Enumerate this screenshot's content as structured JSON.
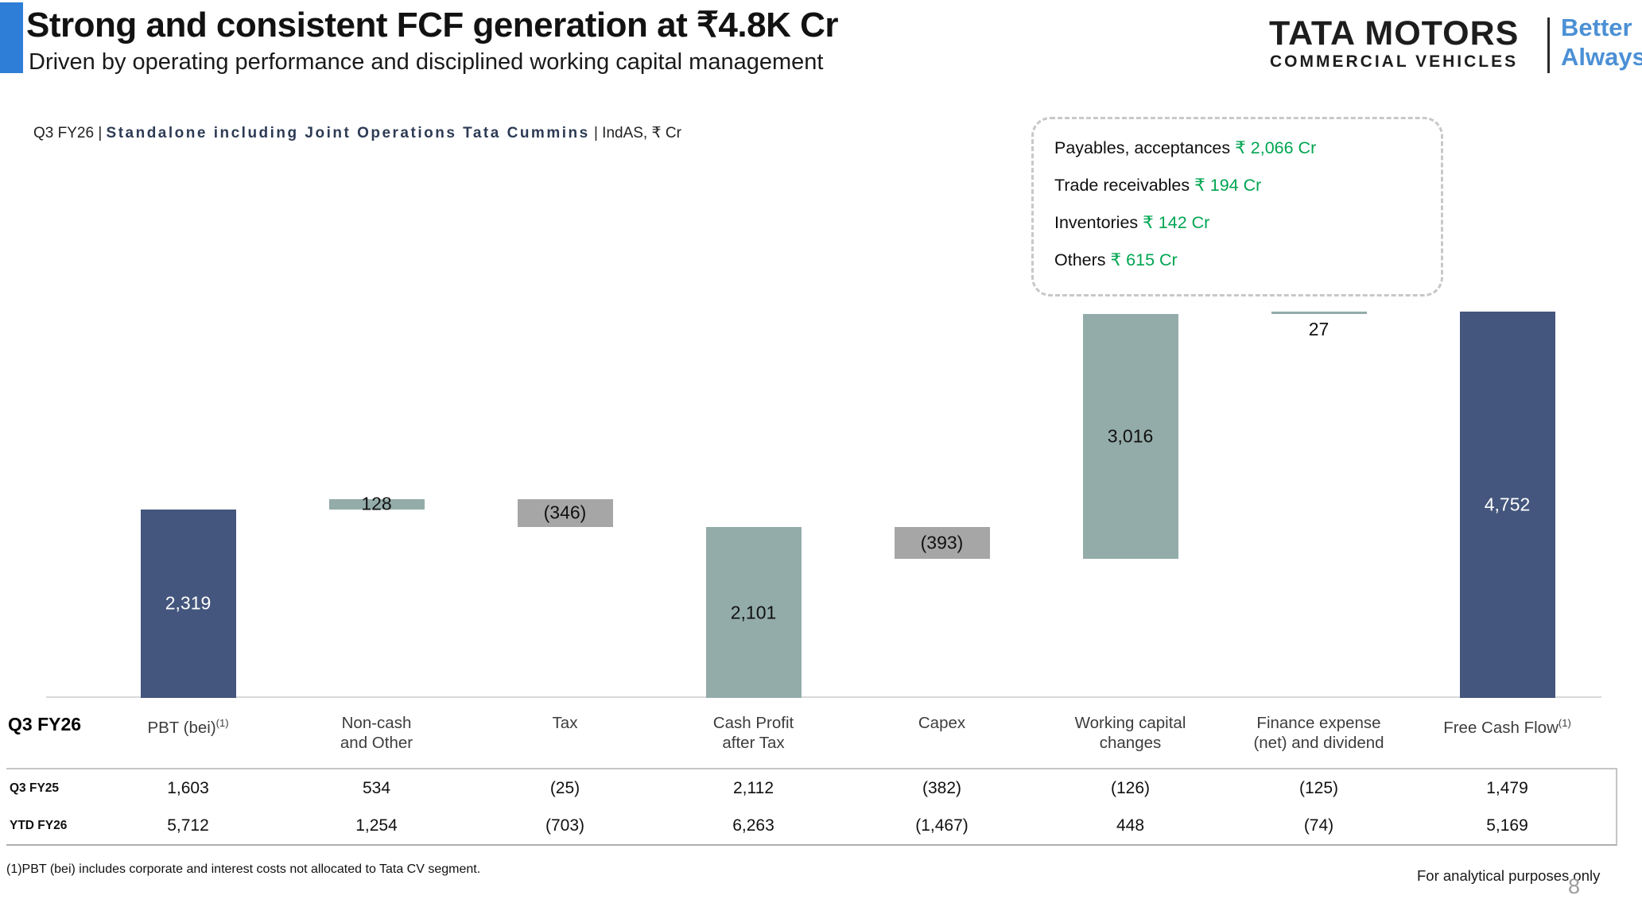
{
  "header": {
    "title": "Strong and consistent FCF generation at ₹4.8K Cr",
    "subtitle": "Driven by operating performance and disciplined working capital management",
    "context_prefix": "Q3 FY26 | ",
    "context_bold": "Standalone including Joint Operations Tata Cummins",
    "context_suffix": " | IndAS, ₹ Cr"
  },
  "logo": {
    "brand": "TATA MOTORS",
    "division": "COMMERCIAL VEHICLES",
    "tagline_line1": "Better",
    "tagline_line2": "Always"
  },
  "callout": {
    "items": [
      {
        "label": "Payables, acceptances",
        "value": "₹ 2,066 Cr"
      },
      {
        "label": "Trade receivables",
        "value": "₹ 194 Cr"
      },
      {
        "label": "Inventories",
        "value": "₹ 142 Cr"
      },
      {
        "label": "Others",
        "value": "₹ 615 Cr"
      }
    ]
  },
  "chart_data": {
    "type": "bar",
    "subtype": "waterfall",
    "unit": "₹ Cr",
    "row_label": "Q3 FY26",
    "grid": false,
    "ylim": [
      0,
      5000
    ],
    "categories": [
      {
        "line1": "PBT (bei)",
        "line2": "",
        "sup": "(1)"
      },
      {
        "line1": "Non-cash",
        "line2": "and Other",
        "sup": ""
      },
      {
        "line1": "Tax",
        "line2": "",
        "sup": ""
      },
      {
        "line1": "Cash Profit",
        "line2": "after Tax",
        "sup": ""
      },
      {
        "line1": "Capex",
        "line2": "",
        "sup": ""
      },
      {
        "line1": "Working capital",
        "line2": "changes",
        "sup": ""
      },
      {
        "line1": "Finance expense",
        "line2": "(net) and dividend",
        "sup": ""
      },
      {
        "line1": "Free Cash Flow",
        "line2": "",
        "sup": "(1)"
      }
    ],
    "series": [
      {
        "name": "Q3 FY26",
        "values": [
          2319,
          128,
          -346,
          2101,
          -393,
          3016,
          27,
          4752
        ],
        "labels": [
          "2,319",
          "128",
          "(346)",
          "2,101",
          "(393)",
          "3,016",
          "27",
          "4,752"
        ],
        "kinds": [
          "total",
          "delta",
          "delta",
          "subtotal",
          "delta",
          "delta",
          "delta",
          "total"
        ],
        "label_placement": [
          "center",
          "center",
          "center",
          "center",
          "center",
          "center",
          "below",
          "center"
        ]
      },
      {
        "name": "Q3 FY25",
        "values": [
          1603,
          534,
          -25,
          2112,
          -382,
          -126,
          -125,
          1479
        ]
      },
      {
        "name": "YTD FY26",
        "values": [
          5712,
          1254,
          -703,
          6263,
          -1467,
          448,
          -74,
          5169
        ]
      }
    ],
    "table_rows": [
      {
        "label": "Q3 FY25",
        "cells": [
          "1,603",
          "534",
          "(25)",
          "2,112",
          "(382)",
          "(126)",
          "(125)",
          "1,479"
        ]
      },
      {
        "label": "YTD FY26",
        "cells": [
          "5,712",
          "1,254",
          "(703)",
          "6,263",
          "(1,467)",
          "448",
          "(74)",
          "5,169"
        ]
      }
    ],
    "bar_colors": {
      "total": "#44567d",
      "positive": "#93aca9",
      "negative": "#a6a6a6"
    }
  },
  "colors": {
    "accent_blue": "#2e7dd7",
    "tagline_blue": "#4b90d5",
    "green": "#00a551",
    "navy_bar": "#44567d",
    "sage_bar": "#93aca9",
    "grey_bar": "#a6a6a6"
  },
  "footer": {
    "footnote": "(1)PBT (bei) includes corporate and interest costs not allocated to Tata CV segment.",
    "disclaimer": "For analytical purposes only",
    "page_number": "8"
  }
}
